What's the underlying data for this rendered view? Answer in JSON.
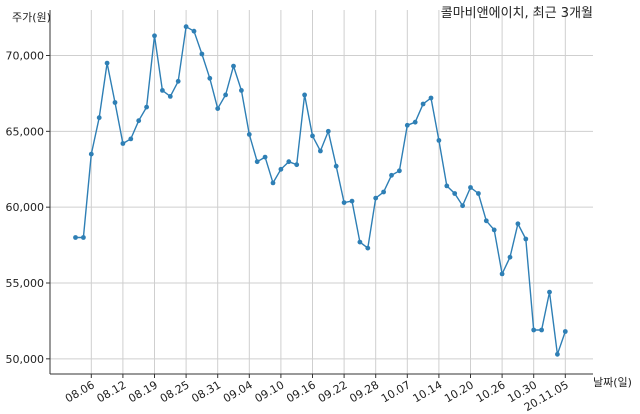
{
  "chart_data": {
    "type": "line",
    "title": "콜마비앤에이치, 최근 3개월",
    "ylabel": "주가(원)",
    "xlabel": "날짜(일)",
    "ylim": [
      49000,
      73000
    ],
    "yticks": [
      50000,
      55000,
      60000,
      65000,
      70000
    ],
    "ytick_labels": [
      "50,000",
      "55,000",
      "60,000",
      "65,000",
      "70,000"
    ],
    "grid": true,
    "color": "#2e7fb5",
    "x_ticks": [
      {
        "label": "08.06",
        "index": 2
      },
      {
        "label": "08.12",
        "index": 6
      },
      {
        "label": "08.19",
        "index": 10
      },
      {
        "label": "08.25",
        "index": 14
      },
      {
        "label": "08.31",
        "index": 18
      },
      {
        "label": "09.04",
        "index": 22
      },
      {
        "label": "09.10",
        "index": 26
      },
      {
        "label": "09.16",
        "index": 30
      },
      {
        "label": "09.22",
        "index": 34
      },
      {
        "label": "09.28",
        "index": 38
      },
      {
        "label": "10.07",
        "index": 42
      },
      {
        "label": "10.14",
        "index": 46
      },
      {
        "label": "10.20",
        "index": 50
      },
      {
        "label": "10.26",
        "index": 54
      },
      {
        "label": "10.30",
        "index": 58
      },
      {
        "label": "20.11.05",
        "index": 62
      }
    ],
    "values": [
      58000,
      58000,
      63500,
      65900,
      69500,
      66900,
      64200,
      64500,
      65700,
      66600,
      71300,
      67700,
      67300,
      68300,
      71900,
      71600,
      70100,
      68500,
      66500,
      67400,
      69300,
      67700,
      64800,
      63000,
      63300,
      61600,
      62500,
      63000,
      62800,
      67400,
      64700,
      63700,
      65000,
      62700,
      60300,
      60400,
      57700,
      57300,
      60600,
      61000,
      62100,
      62400,
      65400,
      65600,
      66800,
      67200,
      64400,
      61400,
      60900,
      60100,
      61300,
      60900,
      59100,
      58500,
      55600,
      56700,
      58900,
      57900,
      51900,
      51900,
      54400,
      50300,
      51800
    ]
  }
}
